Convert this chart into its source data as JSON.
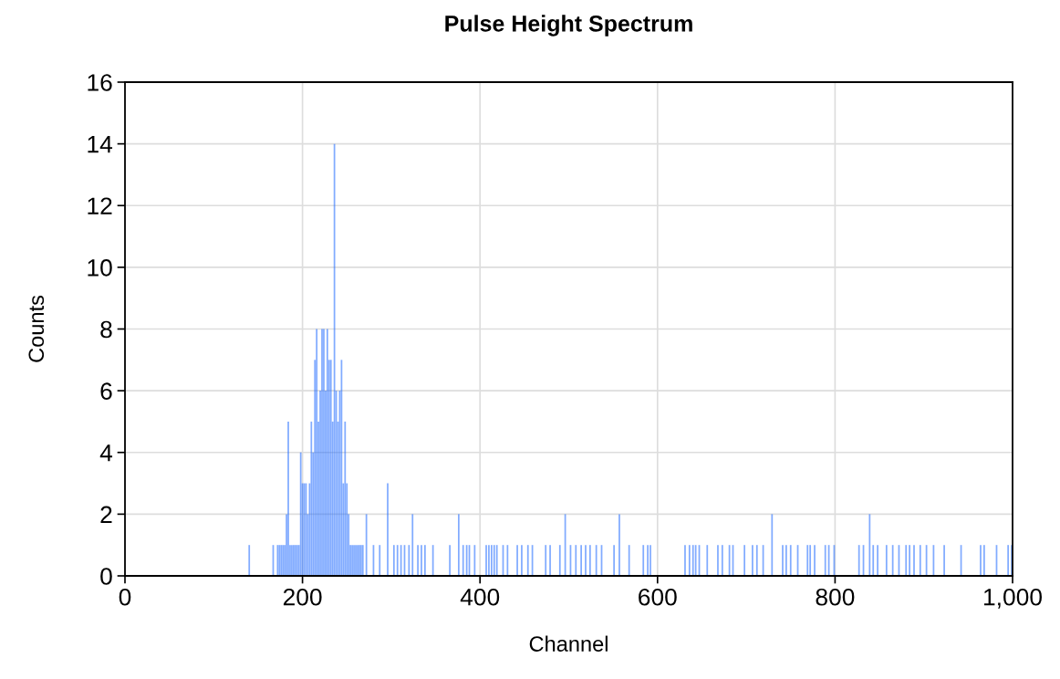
{
  "chart_data": {
    "type": "bar",
    "title": "Pulse Height Spectrum",
    "xlabel": "Channel",
    "ylabel": "Counts",
    "x": [
      140,
      167,
      172,
      174,
      176,
      178,
      180,
      182,
      184,
      186,
      188,
      190,
      192,
      194,
      196,
      198,
      200,
      202,
      204,
      206,
      208,
      210,
      212,
      214,
      216,
      218,
      220,
      222,
      224,
      226,
      228,
      230,
      232,
      234,
      236,
      238,
      240,
      242,
      244,
      246,
      248,
      250,
      252,
      254,
      256,
      258,
      260,
      262,
      264,
      266,
      268,
      272,
      280,
      287,
      296,
      303,
      307,
      311,
      315,
      320,
      324,
      330,
      334,
      338,
      347,
      366,
      376,
      381,
      385,
      388,
      394,
      407,
      410,
      413,
      416,
      419,
      426,
      431,
      442,
      447,
      454,
      459,
      474,
      479,
      490,
      496,
      502,
      508,
      514,
      519,
      524,
      531,
      537,
      551,
      557,
      568,
      584,
      589,
      592,
      631,
      636,
      640,
      643,
      647,
      656,
      668,
      673,
      681,
      685,
      698,
      707,
      712,
      719,
      729,
      741,
      745,
      750,
      758,
      769,
      772,
      777,
      789,
      793,
      799,
      827,
      832,
      839,
      843,
      848,
      858,
      865,
      872,
      880,
      884,
      889,
      896,
      903,
      911,
      923,
      942,
      964,
      968,
      982,
      995,
      999
    ],
    "values": [
      1,
      1,
      1,
      1,
      1,
      1,
      1,
      2,
      5,
      1,
      1,
      1,
      1,
      1,
      1,
      4,
      3,
      3,
      3,
      2,
      3,
      5,
      4,
      7,
      8,
      5,
      6,
      8,
      8,
      6,
      8,
      7,
      7,
      5,
      14,
      6,
      5,
      6,
      7,
      3,
      5,
      3,
      2,
      1,
      1,
      1,
      1,
      1,
      1,
      1,
      1,
      2,
      1,
      1,
      3,
      1,
      1,
      1,
      1,
      1,
      2,
      1,
      1,
      1,
      1,
      1,
      2,
      1,
      1,
      1,
      1,
      1,
      1,
      1,
      1,
      1,
      1,
      1,
      1,
      1,
      1,
      1,
      1,
      1,
      1,
      2,
      1,
      1,
      1,
      1,
      1,
      1,
      1,
      1,
      2,
      1,
      1,
      1,
      1,
      1,
      1,
      1,
      1,
      1,
      1,
      1,
      1,
      1,
      1,
      1,
      1,
      1,
      1,
      2,
      1,
      1,
      1,
      1,
      1,
      1,
      1,
      1,
      1,
      1,
      1,
      1,
      2,
      1,
      1,
      1,
      1,
      1,
      1,
      1,
      1,
      1,
      1,
      1,
      1,
      1,
      1,
      1,
      1,
      1,
      1
    ],
    "color": "#1a66ff",
    "xlim": [
      0,
      1000
    ],
    "xticks": [
      0,
      200,
      400,
      600,
      800,
      {
        "value": 1000,
        "label": "1,000"
      }
    ],
    "ylim": [
      0,
      16
    ],
    "yticks": [
      0,
      2,
      4,
      6,
      8,
      10,
      12,
      14,
      16
    ],
    "grid": true
  }
}
